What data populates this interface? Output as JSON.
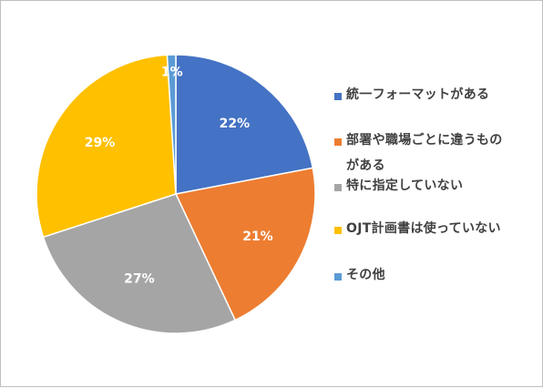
{
  "chart_data": {
    "type": "pie",
    "categories": [
      "統一フォーマットがある",
      "部署や職場ごとに違うものがある",
      "特に指定していない",
      "OJT計画書は使っていない",
      "その他"
    ],
    "values": [
      22,
      21,
      27,
      29,
      1
    ],
    "labels": [
      "22%",
      "21%",
      "27%",
      "29%",
      "1%"
    ],
    "colors": [
      "#4472C4",
      "#ED7D31",
      "#A5A5A5",
      "#FFC000",
      "#5B9BD5"
    ],
    "legend_position": "right",
    "title": ""
  }
}
